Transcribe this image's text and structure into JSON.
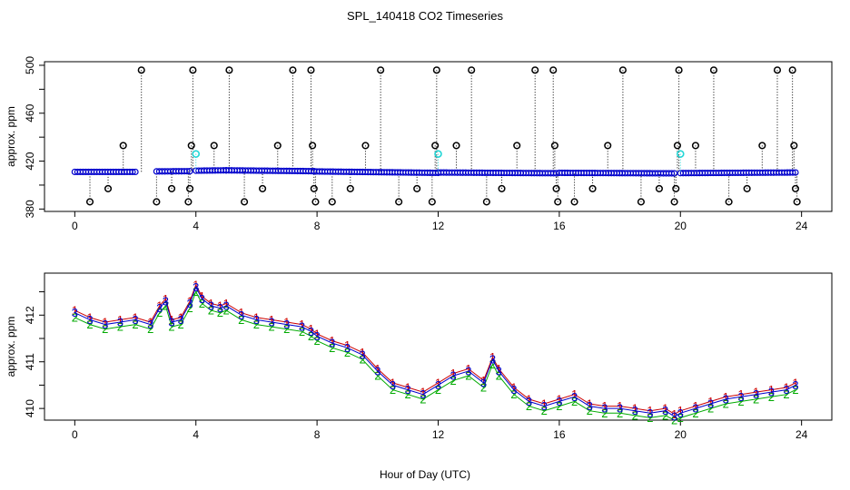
{
  "figure_title": "SPL_140418  CO2 Timeseries",
  "x_label": "Hour of Day (UTC)",
  "chart_data": [
    {
      "type": "scatter",
      "name": "top-panel",
      "title": "SPL_140418  CO2 Timeseries",
      "xlabel": "",
      "ylabel": "approx. ppm",
      "xlim": [
        -1,
        25
      ],
      "ylim": [
        378,
        503
      ],
      "x_ticks": [
        0,
        4,
        8,
        12,
        16,
        20,
        24
      ],
      "y_ticks": [
        380,
        420,
        460,
        500
      ],
      "y_minor_ticks": [
        400,
        440,
        480
      ],
      "series": [
        {
          "name": "baseline",
          "color": "#0000cc",
          "marker": "circle",
          "segments": [
            {
              "x0": 0.0,
              "x1": 2.0,
              "y0": 411.0,
              "y1": 411.0
            },
            {
              "x0": 2.7,
              "x1": 3.8,
              "y0": 411.4,
              "y1": 411.6
            },
            {
              "x0": 4.0,
              "x1": 5.0,
              "y0": 412.0,
              "y1": 412.3
            },
            {
              "x0": 5.0,
              "x1": 7.9,
              "y0": 412.3,
              "y1": 411.6
            },
            {
              "x0": 7.9,
              "x1": 12.0,
              "y0": 411.4,
              "y1": 410.2
            },
            {
              "x0": 12.0,
              "x1": 15.9,
              "y0": 410.5,
              "y1": 409.9
            },
            {
              "x0": 16.0,
              "x1": 19.8,
              "y0": 410.2,
              "y1": 409.8
            },
            {
              "x0": 20.0,
              "x1": 23.8,
              "y0": 410.0,
              "y1": 410.5
            }
          ]
        },
        {
          "name": "outliers",
          "color": "#000000",
          "marker": "circle",
          "points": [
            [
              0.5,
              386
            ],
            [
              1.1,
              397
            ],
            [
              1.6,
              433
            ],
            [
              2.2,
              496
            ],
            [
              2.7,
              386
            ],
            [
              3.2,
              397
            ],
            [
              3.75,
              386
            ],
            [
              3.8,
              397
            ],
            [
              3.85,
              433
            ],
            [
              3.9,
              496
            ],
            [
              4.6,
              433
            ],
            [
              5.1,
              496
            ],
            [
              5.6,
              386
            ],
            [
              6.2,
              397
            ],
            [
              6.7,
              433
            ],
            [
              7.2,
              496
            ],
            [
              7.8,
              496
            ],
            [
              7.85,
              433
            ],
            [
              7.9,
              397
            ],
            [
              7.95,
              386
            ],
            [
              8.5,
              386
            ],
            [
              9.1,
              397
            ],
            [
              9.6,
              433
            ],
            [
              10.1,
              496
            ],
            [
              10.7,
              386
            ],
            [
              11.3,
              397
            ],
            [
              11.8,
              386
            ],
            [
              11.9,
              433
            ],
            [
              11.95,
              496
            ],
            [
              12.6,
              433
            ],
            [
              13.1,
              496
            ],
            [
              13.6,
              386
            ],
            [
              14.1,
              397
            ],
            [
              14.6,
              433
            ],
            [
              15.2,
              496
            ],
            [
              15.8,
              496
            ],
            [
              15.85,
              433
            ],
            [
              15.9,
              397
            ],
            [
              15.95,
              386
            ],
            [
              16.5,
              386
            ],
            [
              17.1,
              397
            ],
            [
              17.6,
              433
            ],
            [
              18.1,
              496
            ],
            [
              18.7,
              386
            ],
            [
              19.3,
              397
            ],
            [
              19.8,
              386
            ],
            [
              19.85,
              397
            ],
            [
              19.9,
              433
            ],
            [
              19.95,
              496
            ],
            [
              20.5,
              433
            ],
            [
              21.1,
              496
            ],
            [
              21.6,
              386
            ],
            [
              22.2,
              397
            ],
            [
              22.7,
              433
            ],
            [
              23.2,
              496
            ],
            [
              23.7,
              496
            ],
            [
              23.75,
              433
            ],
            [
              23.8,
              397
            ],
            [
              23.85,
              386
            ]
          ]
        },
        {
          "name": "highlights",
          "color": "#22d6d6",
          "marker": "circle",
          "points": [
            [
              4.0,
              426
            ],
            [
              12.0,
              426
            ],
            [
              20.0,
              426
            ]
          ]
        }
      ]
    },
    {
      "type": "line",
      "name": "bottom-panel",
      "title": "",
      "xlabel": "Hour of Day (UTC)",
      "ylabel": "approx. ppm",
      "xlim": [
        -1,
        25
      ],
      "ylim": [
        409.75,
        412.9
      ],
      "x_ticks": [
        0,
        4,
        8,
        12,
        16,
        20,
        24
      ],
      "y_ticks": [
        410.0,
        411.0,
        412.0
      ],
      "y_minor_ticks": [
        410.5,
        411.5,
        412.5
      ],
      "x": [
        0.0,
        0.5,
        1.0,
        1.5,
        2.0,
        2.5,
        2.8,
        3.0,
        3.2,
        3.5,
        3.8,
        4.0,
        4.2,
        4.5,
        4.8,
        5.0,
        5.5,
        6.0,
        6.5,
        7.0,
        7.5,
        7.8,
        8.0,
        8.5,
        9.0,
        9.5,
        10.0,
        10.5,
        11.0,
        11.5,
        12.0,
        12.5,
        13.0,
        13.5,
        13.8,
        14.0,
        14.5,
        15.0,
        15.5,
        16.0,
        16.5,
        17.0,
        17.5,
        18.0,
        18.5,
        19.0,
        19.5,
        19.8,
        20.0,
        20.5,
        21.0,
        21.5,
        22.0,
        22.5,
        23.0,
        23.5,
        23.8
      ],
      "series": [
        {
          "name": "1",
          "label": "1",
          "color": "#cc0000",
          "values": [
            412.1,
            411.95,
            411.85,
            411.9,
            411.95,
            411.85,
            412.2,
            412.35,
            411.9,
            411.95,
            412.3,
            412.65,
            412.4,
            412.25,
            412.2,
            412.25,
            412.05,
            411.95,
            411.9,
            411.85,
            411.8,
            411.7,
            411.6,
            411.45,
            411.35,
            411.2,
            410.85,
            410.55,
            410.45,
            410.35,
            410.55,
            410.75,
            410.85,
            410.6,
            411.1,
            410.85,
            410.45,
            410.2,
            410.1,
            410.2,
            410.3,
            410.1,
            410.05,
            410.05,
            410.0,
            409.95,
            410.0,
            409.88,
            409.95,
            410.05,
            410.15,
            410.25,
            410.3,
            410.35,
            410.4,
            410.45,
            410.55
          ]
        },
        {
          "name": "2",
          "label": "2",
          "color": "#00aa00",
          "values": [
            411.95,
            411.8,
            411.7,
            411.75,
            411.8,
            411.7,
            412.05,
            412.2,
            411.75,
            411.8,
            412.15,
            412.5,
            412.25,
            412.1,
            412.05,
            412.1,
            411.9,
            411.8,
            411.75,
            411.7,
            411.65,
            411.55,
            411.45,
            411.3,
            411.2,
            411.05,
            410.7,
            410.4,
            410.3,
            410.2,
            410.4,
            410.6,
            410.7,
            410.45,
            410.95,
            410.7,
            410.3,
            410.05,
            409.95,
            410.05,
            410.15,
            409.95,
            409.9,
            409.9,
            409.85,
            409.8,
            409.85,
            409.75,
            409.8,
            409.9,
            410.0,
            410.1,
            410.15,
            410.2,
            410.25,
            410.3,
            410.4
          ]
        },
        {
          "name": "3",
          "label": "3",
          "color": "#0000cc",
          "values": [
            412.05,
            411.9,
            411.8,
            411.85,
            411.9,
            411.8,
            412.15,
            412.3,
            411.85,
            411.9,
            412.25,
            412.6,
            412.35,
            412.2,
            412.15,
            412.2,
            412.0,
            411.9,
            411.85,
            411.8,
            411.75,
            411.65,
            411.55,
            411.4,
            411.3,
            411.15,
            410.8,
            410.5,
            410.4,
            410.3,
            410.5,
            410.7,
            410.8,
            410.55,
            411.05,
            410.8,
            410.4,
            410.15,
            410.05,
            410.15,
            410.25,
            410.05,
            410.0,
            410.0,
            409.95,
            409.9,
            409.95,
            409.83,
            409.9,
            410.0,
            410.1,
            410.2,
            410.25,
            410.3,
            410.35,
            410.4,
            410.5
          ]
        }
      ]
    }
  ]
}
